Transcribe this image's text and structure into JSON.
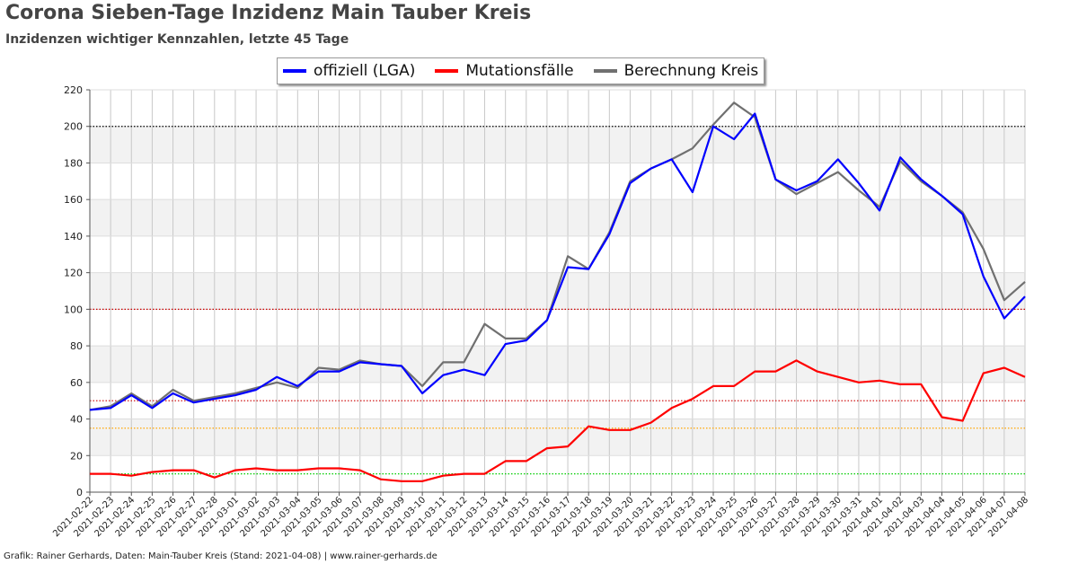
{
  "title": "Corona Sieben-Tage Inzidenz Main Tauber Kreis",
  "subtitle": "Inzidenzen wichtiger Kennzahlen, letzte 45 Tage",
  "footer": "Grafik: Rainer Gerhards, Daten: Main-Tauber Kreis (Stand: 2021-04-08) | www.rainer-gerhards.de",
  "legend_position": "top-center",
  "chart_data": {
    "type": "line",
    "title": "Corona Sieben-Tage Inzidenz Main Tauber Kreis",
    "subtitle": "Inzidenzen wichtiger Kennzahlen, letzte 45 Tage",
    "xlabel": "",
    "ylabel": "",
    "ylim": [
      0,
      220
    ],
    "yticks": [
      0,
      20,
      40,
      60,
      80,
      100,
      120,
      140,
      160,
      180,
      200,
      220
    ],
    "grid": true,
    "x": [
      "2021-02-22",
      "2021-02-23",
      "2021-02-24",
      "2021-02-25",
      "2021-02-26",
      "2021-02-27",
      "2021-02-28",
      "2021-03-01",
      "2021-03-02",
      "2021-03-03",
      "2021-03-04",
      "2021-03-05",
      "2021-03-06",
      "2021-03-07",
      "2021-03-08",
      "2021-03-09",
      "2021-03-10",
      "2021-03-11",
      "2021-03-12",
      "2021-03-13",
      "2021-03-14",
      "2021-03-15",
      "2021-03-16",
      "2021-03-17",
      "2021-03-18",
      "2021-03-19",
      "2021-03-20",
      "2021-03-21",
      "2021-03-22",
      "2021-03-23",
      "2021-03-24",
      "2021-03-25",
      "2021-03-26",
      "2021-03-27",
      "2021-03-28",
      "2021-03-29",
      "2021-03-30",
      "2021-03-31",
      "2021-04-01",
      "2021-04-02",
      "2021-04-03",
      "2021-04-04",
      "2021-04-05",
      "2021-04-06",
      "2021-04-07",
      "2021-04-08"
    ],
    "series": [
      {
        "name": "offiziell (LGA)",
        "color": "#0000ff",
        "values": [
          45,
          46,
          53,
          46,
          54,
          49,
          51,
          53,
          56,
          63,
          58,
          66,
          66,
          71,
          70,
          69,
          54,
          64,
          67,
          64,
          81,
          83,
          94,
          123,
          122,
          141,
          169,
          177,
          182,
          164,
          200,
          193,
          207,
          171,
          165,
          170,
          182,
          169,
          154,
          183,
          171,
          162,
          152,
          118,
          95,
          107
        ]
      },
      {
        "name": "Mutationsfälle",
        "color": "#ff0000",
        "values": [
          10,
          10,
          9,
          11,
          12,
          12,
          8,
          12,
          13,
          12,
          12,
          13,
          13,
          12,
          7,
          6,
          6,
          9,
          10,
          10,
          17,
          17,
          24,
          25,
          36,
          34,
          34,
          38,
          46,
          51,
          58,
          58,
          66,
          66,
          72,
          66,
          63,
          60,
          61,
          59,
          59,
          41,
          39,
          65,
          68,
          63
        ]
      },
      {
        "name": "Berechnung Kreis",
        "color": "#707070",
        "values": [
          45,
          47,
          54,
          47,
          56,
          50,
          52,
          54,
          57,
          60,
          57,
          68,
          67,
          72,
          70,
          69,
          58,
          71,
          71,
          92,
          84,
          84,
          94,
          129,
          122,
          142,
          170,
          177,
          182,
          188,
          201,
          213,
          205,
          171,
          163,
          169,
          175,
          165,
          156,
          181,
          170,
          162,
          153,
          133,
          105,
          115
        ]
      }
    ],
    "reference_lines": [
      {
        "value": 200,
        "color": "#000000"
      },
      {
        "value": 100,
        "color": "#cc0000"
      },
      {
        "value": 50,
        "color": "#cc0000"
      },
      {
        "value": 35,
        "color": "#ffa500"
      },
      {
        "value": 10,
        "color": "#00cc00"
      }
    ],
    "band_color": "#f2f2f2"
  }
}
